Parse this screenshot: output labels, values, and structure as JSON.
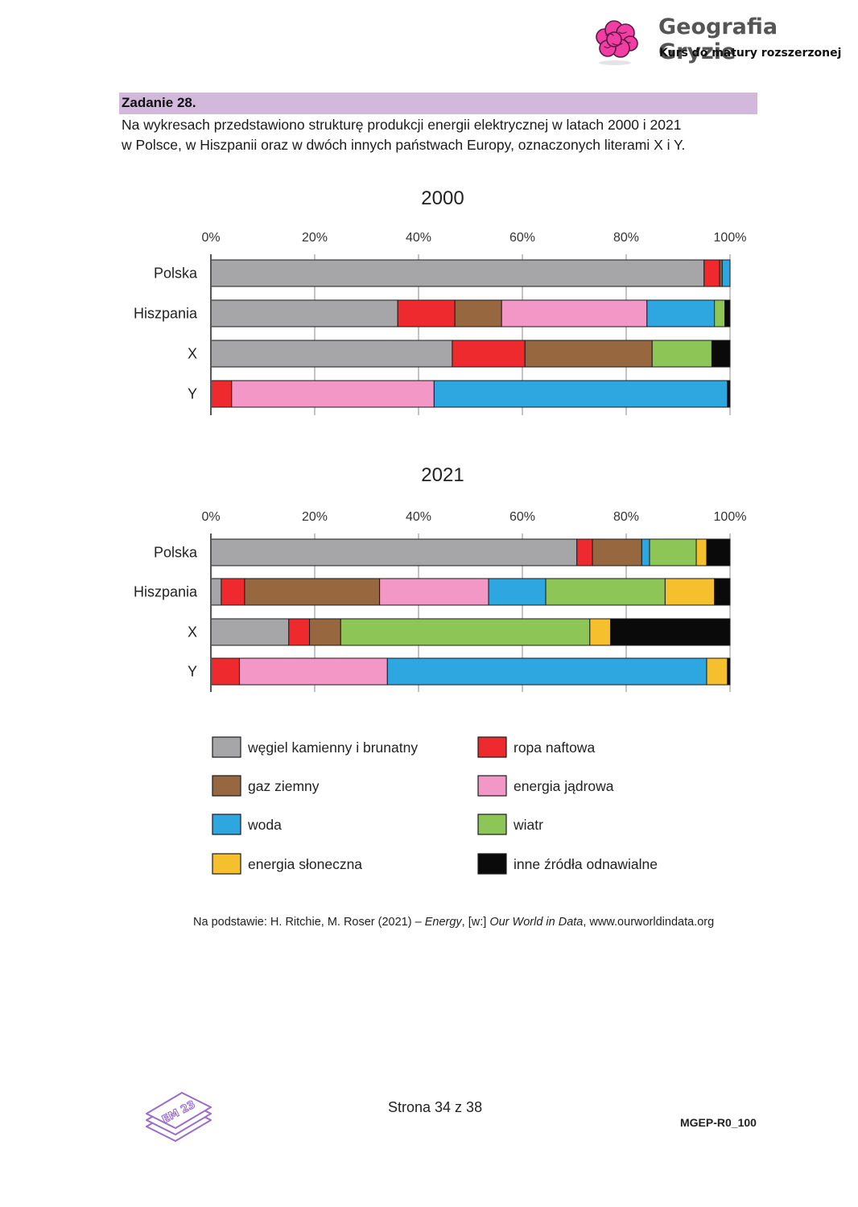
{
  "branding": {
    "title": "Geografia Gryzie",
    "subtitle": "Kurs do matury rozszerzonej",
    "logo_icon": "brain-icon"
  },
  "task": {
    "label": "Zadanie 28.",
    "text_line1": "Na wykresach przedstawiono strukturę produkcji energii elektrycznej w latach 2000 i 2021",
    "text_line2": "w Polsce, w Hiszpanii oraz w dwóch innych państwach Europy, oznaczonych literami X i Y."
  },
  "chart_data": [
    {
      "type": "bar",
      "orientation": "horizontal",
      "stacked": true,
      "title": "2000",
      "categories": [
        "Polska",
        "Hiszpania",
        "X",
        "Y"
      ],
      "xlim": [
        0,
        100
      ],
      "ticks": [
        "0%",
        "20%",
        "40%",
        "60%",
        "80%",
        "100%"
      ],
      "grid": true,
      "series": [
        {
          "name": "węgiel kamienny i brunatny",
          "color": "#a6a6a8",
          "values": [
            95,
            36,
            46.5,
            0
          ]
        },
        {
          "name": "ropa naftowa",
          "color": "#ee2a2e",
          "values": [
            3,
            11,
            14,
            4
          ]
        },
        {
          "name": "gaz ziemny",
          "color": "#976740",
          "values": [
            0.5,
            9,
            24.5,
            0
          ]
        },
        {
          "name": "energia jądrowa",
          "color": "#f297c6",
          "values": [
            0,
            28,
            0,
            39
          ]
        },
        {
          "name": "woda",
          "color": "#2ea7e0",
          "values": [
            1.5,
            13,
            0,
            56.5
          ]
        },
        {
          "name": "wiatr",
          "color": "#8dc656",
          "values": [
            0,
            2,
            11.5,
            0
          ]
        },
        {
          "name": "energia słoneczna",
          "color": "#f5bf2e",
          "values": [
            0,
            0,
            0,
            0
          ]
        },
        {
          "name": "inne źródła odnawialne",
          "color": "#0a0a0a",
          "values": [
            0,
            1,
            3.5,
            0.5
          ]
        }
      ]
    },
    {
      "type": "bar",
      "orientation": "horizontal",
      "stacked": true,
      "title": "2021",
      "categories": [
        "Polska",
        "Hiszpania",
        "X",
        "Y"
      ],
      "xlim": [
        0,
        100
      ],
      "ticks": [
        "0%",
        "20%",
        "40%",
        "60%",
        "80%",
        "100%"
      ],
      "grid": true,
      "series": [
        {
          "name": "węgiel kamienny i brunatny",
          "color": "#a6a6a8",
          "values": [
            70.5,
            2,
            15,
            0
          ]
        },
        {
          "name": "ropa naftowa",
          "color": "#ee2a2e",
          "values": [
            3,
            4.5,
            4,
            5.5
          ]
        },
        {
          "name": "gaz ziemny",
          "color": "#976740",
          "values": [
            9.5,
            26,
            6,
            0
          ]
        },
        {
          "name": "energia jądrowa",
          "color": "#f297c6",
          "values": [
            0,
            21,
            0,
            28.5
          ]
        },
        {
          "name": "woda",
          "color": "#2ea7e0",
          "values": [
            1.5,
            11,
            0,
            61.5
          ]
        },
        {
          "name": "wiatr",
          "color": "#8dc656",
          "values": [
            9,
            23,
            48,
            0
          ]
        },
        {
          "name": "energia słoneczna",
          "color": "#f5bf2e",
          "values": [
            2,
            9.5,
            4,
            4
          ]
        },
        {
          "name": "inne źródła odnawialne",
          "color": "#0a0a0a",
          "values": [
            4.5,
            3,
            23,
            0.5
          ]
        }
      ]
    }
  ],
  "legend": {
    "items": [
      {
        "label": "węgiel kamienny i brunatny",
        "color": "#a6a6a8"
      },
      {
        "label": "ropa naftowa",
        "color": "#ee2a2e"
      },
      {
        "label": "gaz ziemny",
        "color": "#976740"
      },
      {
        "label": "energia jądrowa",
        "color": "#f297c6"
      },
      {
        "label": "woda",
        "color": "#2ea7e0"
      },
      {
        "label": "wiatr",
        "color": "#8dc656"
      },
      {
        "label": "energia słoneczna",
        "color": "#f5bf2e"
      },
      {
        "label": "inne źródła odnawialne",
        "color": "#0a0a0a"
      }
    ]
  },
  "source": {
    "prefix": "Na podstawie: H. Ritchie, M. Roser (2021) – ",
    "title": "Energy",
    "middle": ", [w:] ",
    "publication": "Our World in Data",
    "suffix": ", www.ourworldindata.org"
  },
  "footer": {
    "page": "Strona 34 z 38",
    "code": "MGEP-R0_100",
    "logo_text": "EM 23",
    "logo_icon": "stacked-papers-icon"
  }
}
